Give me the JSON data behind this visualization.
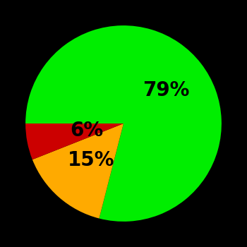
{
  "slices": [
    79,
    15,
    6
  ],
  "colors": [
    "#00ee00",
    "#ffaa00",
    "#cc0000"
  ],
  "labels": [
    "79%",
    "15%",
    "6%"
  ],
  "background_color": "#000000",
  "startangle": 180,
  "label_fontsize": 20,
  "label_color": "#000000",
  "figsize": [
    3.5,
    3.5
  ],
  "dpi": 100,
  "label_radii": [
    0.55,
    0.5,
    0.38
  ]
}
